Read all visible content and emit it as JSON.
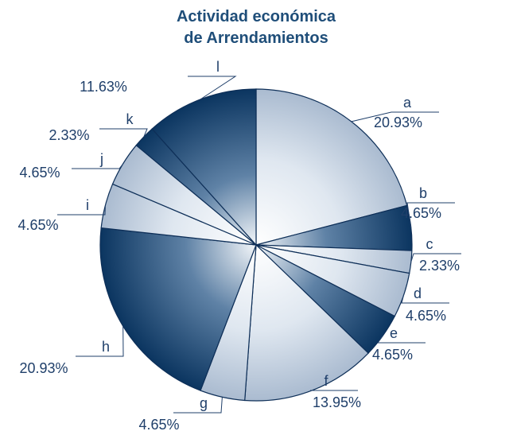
{
  "chart_data": {
    "type": "pie",
    "title": "Actividad económica de Arrendamientos",
    "title_lines": [
      "Actividad económica",
      "de Arrendamientos"
    ],
    "slices": [
      {
        "label": "a",
        "value": 20.93,
        "value_label": "20.93%",
        "style": "light"
      },
      {
        "label": "b",
        "value": 4.65,
        "value_label": "4.65%",
        "style": "dark"
      },
      {
        "label": "c",
        "value": 2.33,
        "value_label": "2.33%",
        "style": "light"
      },
      {
        "label": "d",
        "value": 4.65,
        "value_label": "4.65%",
        "style": "light"
      },
      {
        "label": "e",
        "value": 4.65,
        "value_label": "4.65%",
        "style": "dark"
      },
      {
        "label": "f",
        "value": 13.95,
        "value_label": "13.95%",
        "style": "light"
      },
      {
        "label": "g",
        "value": 4.65,
        "value_label": "4.65%",
        "style": "light"
      },
      {
        "label": "h",
        "value": 20.93,
        "value_label": "20.93%",
        "style": "dark"
      },
      {
        "label": "i",
        "value": 4.65,
        "value_label": "4.65%",
        "style": "light"
      },
      {
        "label": "j",
        "value": 4.65,
        "value_label": "4.65%",
        "style": "light"
      },
      {
        "label": "k",
        "value": 2.33,
        "value_label": "2.33%",
        "style": "dark"
      },
      {
        "label": "l",
        "value": 11.63,
        "value_label": "11.63%",
        "style": "dark"
      }
    ],
    "colors": {
      "dark": "#0e3a66",
      "light": "#d5dfea",
      "text": "#1f3f6a"
    },
    "start": "12 o'clock, clockwise",
    "legend": "none"
  }
}
